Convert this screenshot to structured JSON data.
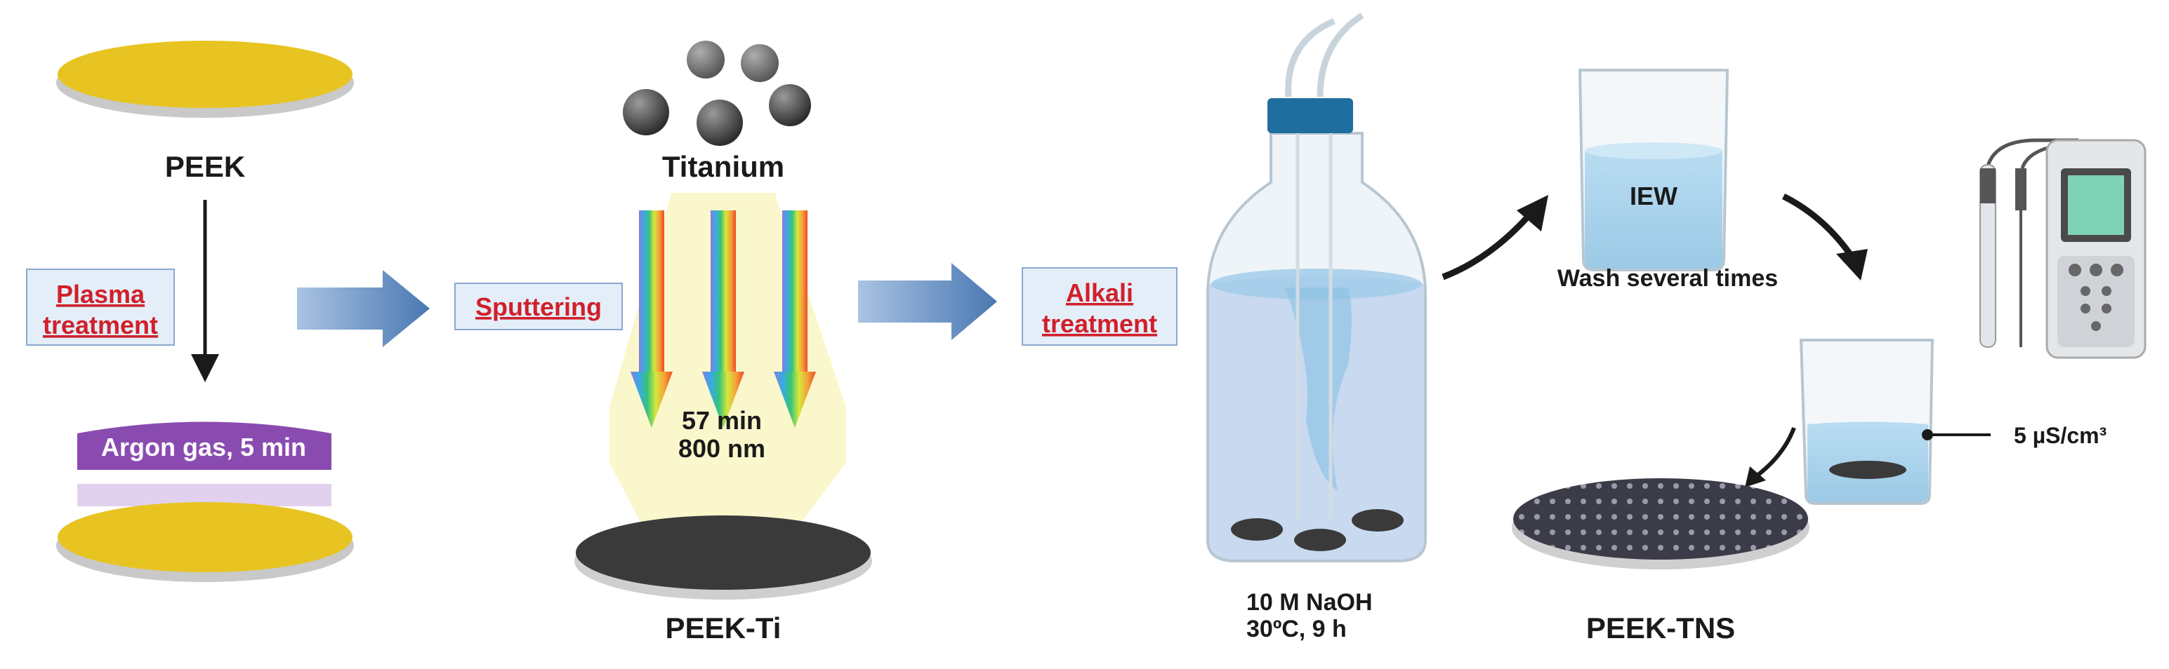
{
  "labels": {
    "peek": "PEEK",
    "titanium": "Titanium",
    "peek_ti": "PEEK-Ti",
    "peek_tns": "PEEK-TNS",
    "argon": "Argon gas, 5 min",
    "sputter_time": "57 min",
    "sputter_thickness": "800 nm",
    "naoh_conc": "10 M NaOH",
    "naoh_cond": "30ºC, 9 h",
    "iew": "IEW",
    "wash": "Wash several times",
    "conductivity": "5 µS/cm³"
  },
  "steps": {
    "plasma_line1": "Plasma",
    "plasma_line2": "treatment",
    "sputtering": "Sputtering",
    "alkali_line1": "Alkali",
    "alkali_line2": "treatment"
  },
  "colors": {
    "peek_yellow": "#e8c422",
    "argon_purple": "#8a4bb0",
    "step_text_red": "#d0202a",
    "step_box_fill": "#e4eef9",
    "process_arrow_blue": "#5a86bd",
    "titanium_dark": "#3a3a3a",
    "water_blue": "#a9d6ee",
    "bottle_cap_blue": "#1f6f9e"
  },
  "icons": [
    "titanium-particles-icon",
    "glass-bottle-icon",
    "beaker-icon",
    "conductivity-meter-icon",
    "disk-icon"
  ]
}
